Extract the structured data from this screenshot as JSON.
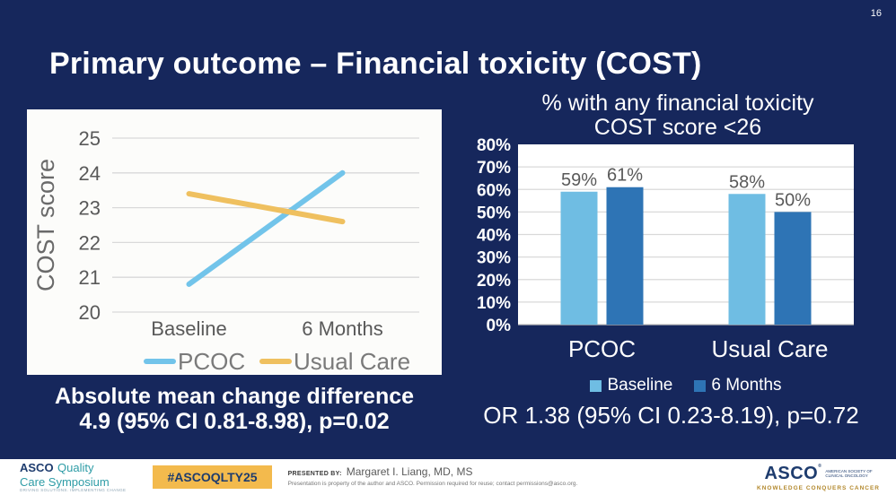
{
  "page_number": "16",
  "title": "Primary outcome – Financial toxicity (COST)",
  "colors": {
    "background": "#16275C",
    "panel": "#FCFCFA",
    "plot_white": "#FFFFFF",
    "gridline": "#D9D9D9",
    "chart_gray_text": "#595959",
    "axis_title_gray": "#6A6A6A",
    "white_text": "#FFFFFF",
    "light_blue": "#6FBDE3",
    "dark_blue": "#2E74B5",
    "line_blue": "#72C4EA",
    "line_yellow": "#EFC05F",
    "badge_amber": "#F3BA4D",
    "logo_teal": "#2E9CA6",
    "logo_navy": "#1E3C6E",
    "motto_gold": "#B3892E"
  },
  "chart_data": [
    {
      "id": "cost-score-line",
      "type": "line",
      "ylabel": "COST score",
      "categories": [
        "Baseline",
        "6 Months"
      ],
      "ylim": [
        20,
        25
      ],
      "yticks": [
        20,
        21,
        22,
        23,
        24,
        25
      ],
      "grid": true,
      "legend_position": "bottom",
      "series": [
        {
          "name": "PCOC",
          "color": "#72C4EA",
          "values": [
            20.8,
            24.0
          ]
        },
        {
          "name": "Usual Care",
          "color": "#EFC05F",
          "values": [
            23.4,
            22.6
          ]
        }
      ],
      "caption_lines": [
        "Absolute mean change difference",
        "4.9 (95% CI 0.81-8.98), p=0.02"
      ]
    },
    {
      "id": "financial-toxicity-bars",
      "type": "bar",
      "title_lines": [
        "% with any financial toxicity",
        "COST score <26"
      ],
      "categories": [
        "PCOC",
        "Usual Care"
      ],
      "ylim": [
        0,
        80
      ],
      "yticks": [
        0,
        10,
        20,
        30,
        40,
        50,
        60,
        70,
        80
      ],
      "ytick_suffix": "%",
      "grid": true,
      "legend_position": "bottom",
      "series": [
        {
          "name": "Baseline",
          "color": "#6FBDE3",
          "values": [
            59,
            58
          ]
        },
        {
          "name": "6 Months",
          "color": "#2E74B5",
          "values": [
            61,
            50
          ]
        }
      ],
      "value_label_suffix": "%",
      "caption": "OR 1.38 (95% CI 0.23-8.19), p=0.72"
    }
  ],
  "footer": {
    "qcs_logo": {
      "asco": "ASCO",
      "quality": "Quality",
      "care_symposium": "Care Symposium",
      "tagline": "DRIVING SOLUTIONS. IMPLEMENTING CHANGE"
    },
    "hashtag": "#ASCOQLTY25",
    "presented_by_label": "PRESENTED BY:",
    "presenter": "Margaret I. Liang, MD, MS",
    "disclaimer": "Presentation is property of the author and ASCO. Permission required for reuse; contact permissions@asco.org.",
    "asco_logo": {
      "name": "ASCO",
      "reg": "®",
      "society_line1": "AMERICAN SOCIETY OF",
      "society_line2": "CLINICAL ONCOLOGY",
      "motto": "KNOWLEDGE CONQUERS CANCER"
    }
  }
}
